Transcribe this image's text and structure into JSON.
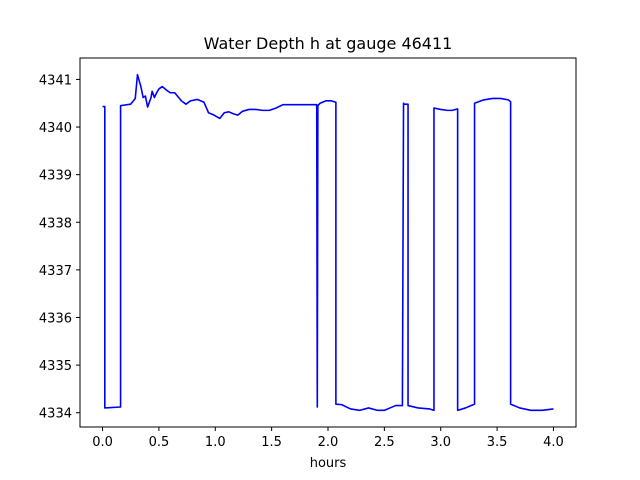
{
  "chart_data": {
    "type": "line",
    "title": "Water Depth h at gauge 46411",
    "xlabel": "hours",
    "ylabel": "",
    "xlim": [
      -0.2,
      4.2
    ],
    "ylim": [
      4333.7,
      4341.45
    ],
    "xticks": [
      0.0,
      0.5,
      1.0,
      1.5,
      2.0,
      2.5,
      3.0,
      3.5,
      4.0
    ],
    "xtick_labels": [
      "0.0",
      "0.5",
      "1.0",
      "1.5",
      "2.0",
      "2.5",
      "3.0",
      "3.5",
      "4.0"
    ],
    "yticks": [
      4334,
      4335,
      4336,
      4337,
      4338,
      4339,
      4340,
      4341
    ],
    "ytick_labels": [
      "4334",
      "4335",
      "4336",
      "4337",
      "4338",
      "4339",
      "4340",
      "4341"
    ],
    "grid": false,
    "series": [
      {
        "color": "#0000ff",
        "x": [
          0.0,
          0.02,
          0.02,
          0.16,
          0.16,
          0.25,
          0.29,
          0.31,
          0.34,
          0.36,
          0.38,
          0.4,
          0.43,
          0.44,
          0.46,
          0.48,
          0.5,
          0.53,
          0.57,
          0.6,
          0.64,
          0.7,
          0.74,
          0.78,
          0.84,
          0.9,
          0.94,
          0.99,
          1.04,
          1.08,
          1.12,
          1.16,
          1.2,
          1.24,
          1.3,
          1.36,
          1.42,
          1.48,
          1.54,
          1.6,
          1.66,
          1.72,
          1.78,
          1.84,
          1.9,
          1.905,
          1.91,
          1.93,
          1.98,
          2.03,
          2.07,
          2.07,
          2.12,
          2.2,
          2.28,
          2.36,
          2.44,
          2.5,
          2.55,
          2.6,
          2.66,
          2.67,
          2.67,
          2.71,
          2.71,
          2.8,
          2.9,
          2.94,
          2.94,
          3.0,
          3.06,
          3.1,
          3.15,
          3.15,
          3.22,
          3.3,
          3.3,
          3.38,
          3.46,
          3.53,
          3.6,
          3.62,
          3.62,
          3.7,
          3.8,
          3.9,
          4.0
        ],
        "y": [
          4340.43,
          4340.43,
          4334.1,
          4334.12,
          4340.45,
          4340.48,
          4340.6,
          4341.1,
          4340.85,
          4340.62,
          4340.65,
          4340.42,
          4340.62,
          4340.75,
          4340.62,
          4340.72,
          4340.8,
          4340.85,
          4340.77,
          4340.72,
          4340.72,
          4340.55,
          4340.48,
          4340.55,
          4340.58,
          4340.52,
          4340.3,
          4340.25,
          4340.18,
          4340.3,
          4340.32,
          4340.28,
          4340.25,
          4340.33,
          4340.37,
          4340.37,
          4340.35,
          4340.35,
          4340.4,
          4340.47,
          4340.47,
          4340.47,
          4340.47,
          4340.47,
          4340.47,
          4334.12,
          4340.45,
          4340.5,
          4340.55,
          4340.55,
          4340.52,
          4334.18,
          4334.17,
          4334.08,
          4334.05,
          4334.1,
          4334.05,
          4334.05,
          4334.1,
          4334.15,
          4334.15,
          4340.5,
          4340.48,
          4340.48,
          4334.15,
          4334.1,
          4334.08,
          4334.05,
          4340.4,
          4340.37,
          4340.35,
          4340.35,
          4340.38,
          4334.05,
          4334.1,
          4334.18,
          4340.5,
          4340.57,
          4340.6,
          4340.6,
          4340.57,
          4340.53,
          4334.18,
          4334.1,
          4334.05,
          4334.05,
          4334.08
        ]
      }
    ]
  }
}
